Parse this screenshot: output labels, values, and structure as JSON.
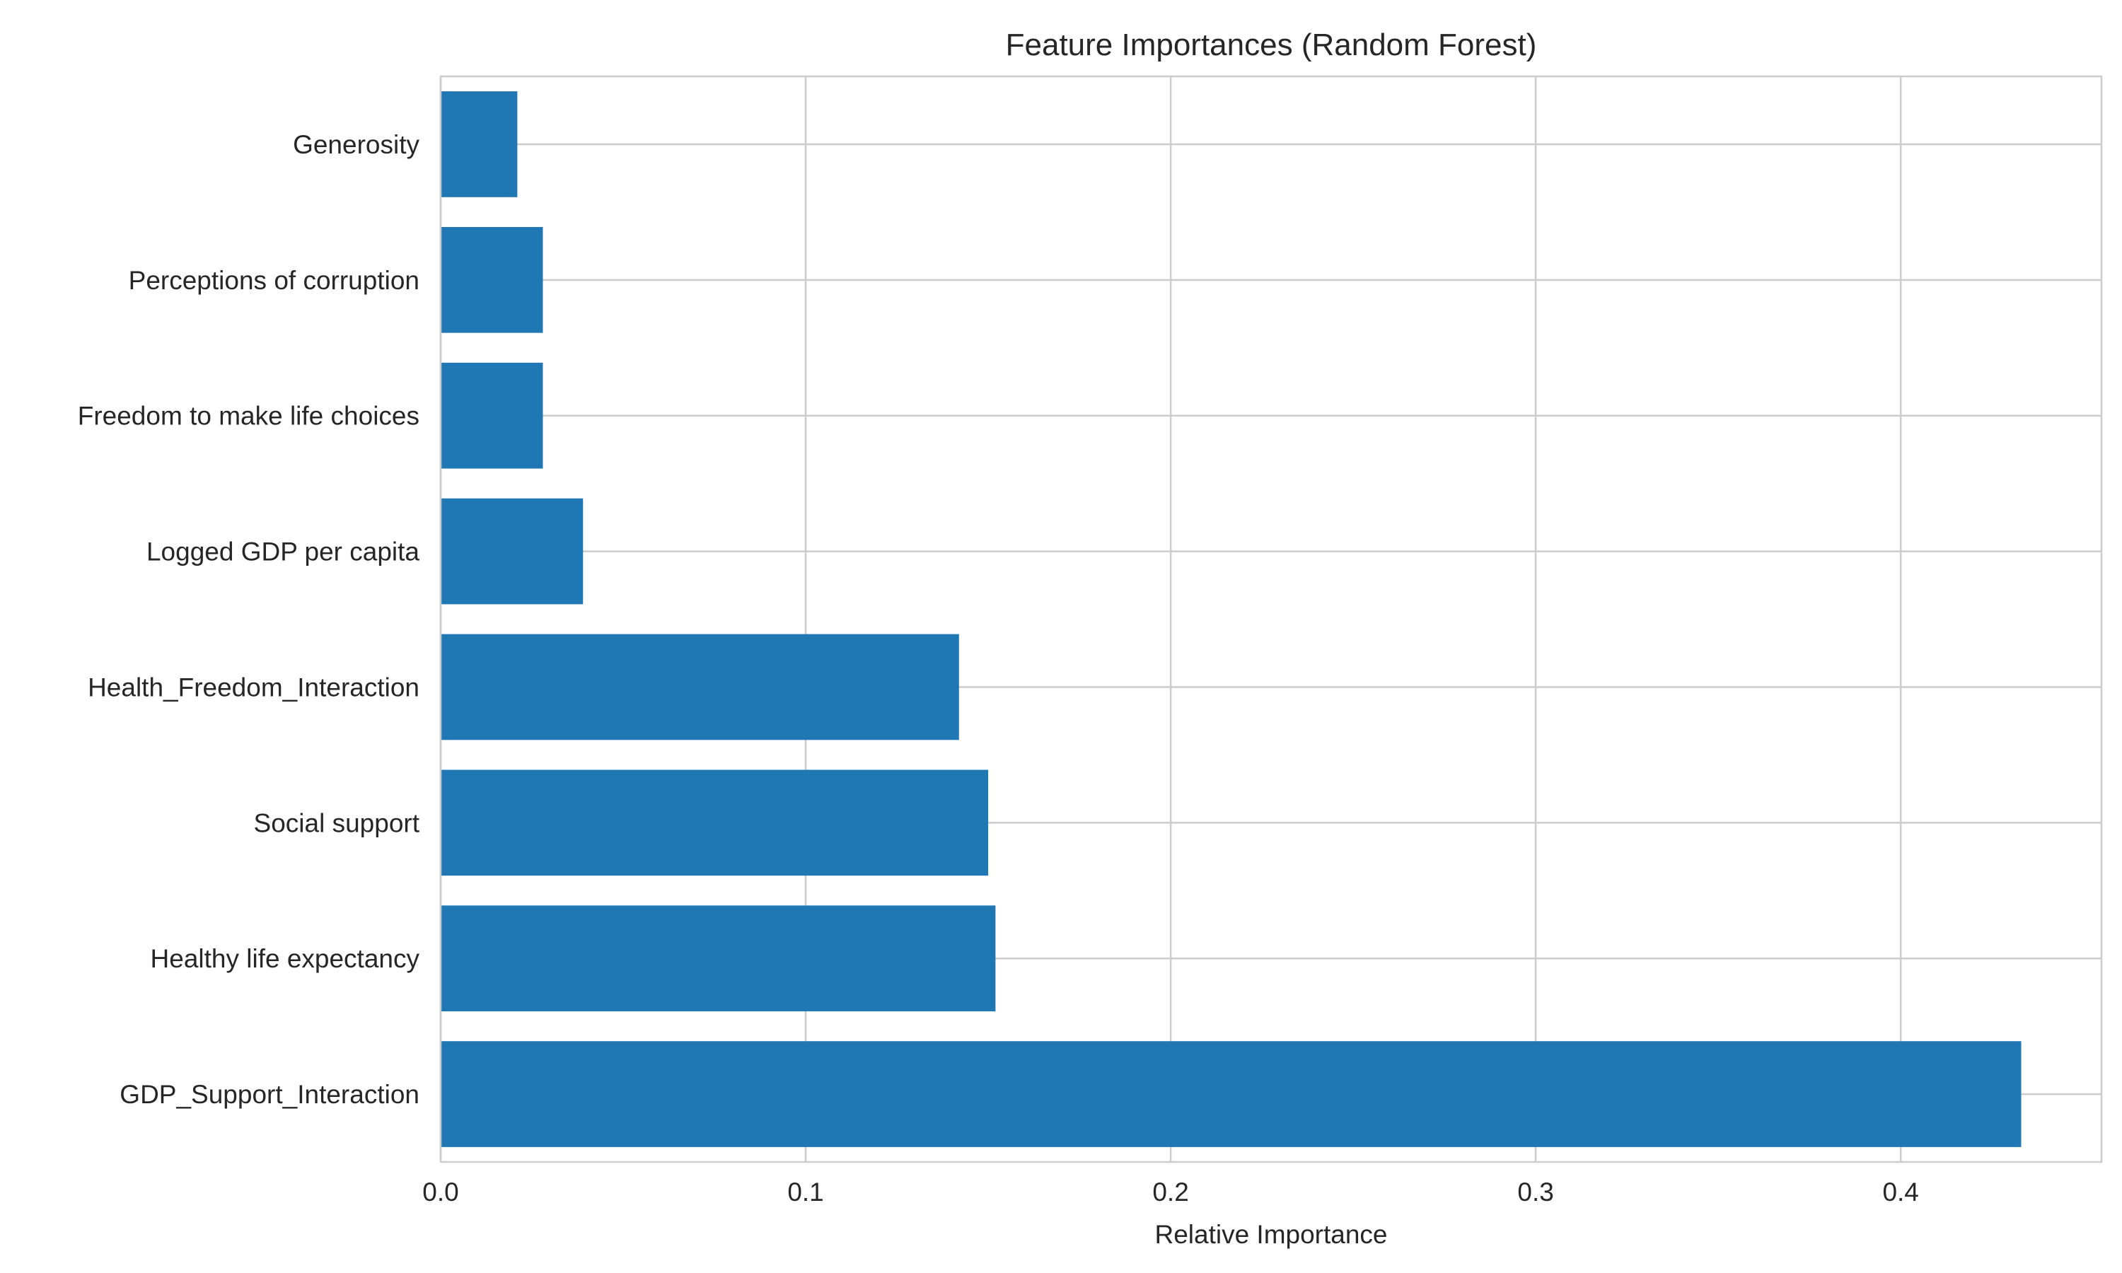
{
  "chart_data": {
    "type": "bar",
    "orientation": "horizontal",
    "title": "Feature Importances (Random Forest)",
    "xlabel": "Relative Importance",
    "ylabel": "",
    "xlim": [
      0.0,
      0.455
    ],
    "xticks": [
      0.0,
      0.1,
      0.2,
      0.3,
      0.4
    ],
    "xtick_labels": [
      "0.0",
      "0.1",
      "0.2",
      "0.3",
      "0.4"
    ],
    "grid": true,
    "bar_color": "#1f77b4",
    "categories": [
      "GDP_Support_Interaction",
      "Healthy life expectancy",
      "Social support",
      "Health_Freedom_Interaction",
      "Logged GDP per capita",
      "Freedom to make life choices",
      "Perceptions of corruption",
      "Generosity"
    ],
    "values": [
      0.433,
      0.152,
      0.15,
      0.142,
      0.039,
      0.028,
      0.028,
      0.021
    ]
  }
}
